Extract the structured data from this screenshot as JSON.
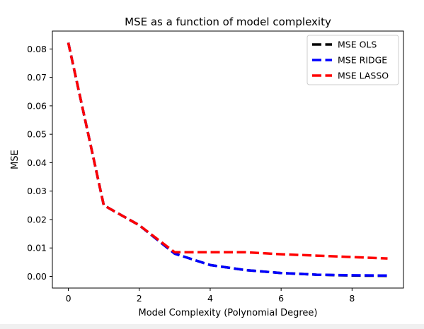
{
  "chart_data": {
    "type": "line",
    "title": "MSE as a function of model complexity",
    "xlabel": "Model Complexity (Polynomial Degree)",
    "ylabel": "MSE",
    "x": [
      0,
      1,
      2,
      3,
      4,
      5,
      6,
      7,
      8,
      9
    ],
    "xlim": [
      -0.45,
      9.45
    ],
    "ylim": [
      -0.0041,
      0.0863
    ],
    "xticks": [
      0,
      2,
      4,
      6,
      8
    ],
    "xtick_labels": [
      "0",
      "2",
      "4",
      "6",
      "8"
    ],
    "yticks": [
      0.0,
      0.01,
      0.02,
      0.03,
      0.04,
      0.05,
      0.06,
      0.07,
      0.08
    ],
    "ytick_labels": [
      "0.00",
      "0.01",
      "0.02",
      "0.03",
      "0.04",
      "0.05",
      "0.06",
      "0.07",
      "0.08"
    ],
    "grid": false,
    "legend": "top-right",
    "series": [
      {
        "name": "MSE OLS",
        "color": "#000000",
        "dash": "dashed",
        "values": [
          0.0822,
          0.025,
          0.018,
          0.008,
          0.004,
          0.0022,
          0.0012,
          0.0006,
          0.0003,
          0.0002
        ]
      },
      {
        "name": "MSE RIDGE",
        "color": "#0000ff",
        "dash": "dashed",
        "values": [
          0.0822,
          0.025,
          0.018,
          0.008,
          0.004,
          0.0022,
          0.0012,
          0.0006,
          0.0004,
          0.0003
        ]
      },
      {
        "name": "MSE LASSO",
        "color": "#ff0000",
        "dash": "dashed",
        "values": [
          0.0822,
          0.025,
          0.018,
          0.0085,
          0.0085,
          0.0085,
          0.0078,
          0.0073,
          0.0068,
          0.0063
        ]
      }
    ]
  }
}
